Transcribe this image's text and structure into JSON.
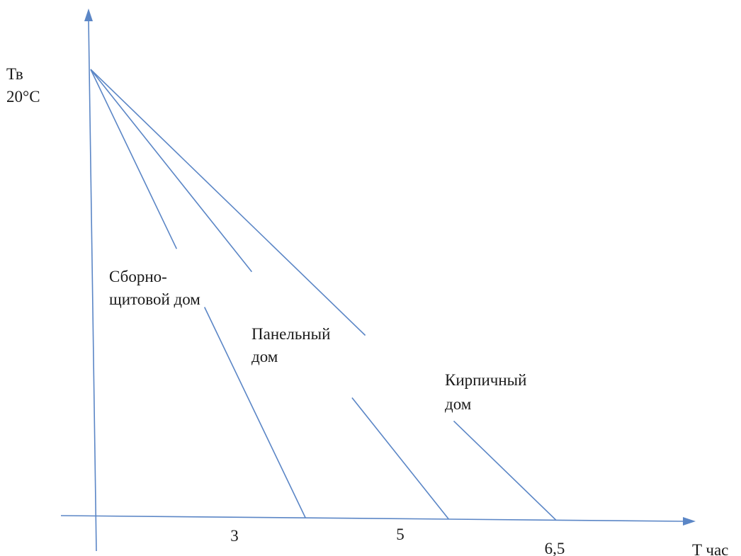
{
  "chart_data": {
    "type": "line",
    "xlabel": "T час",
    "ylabel": "Тв",
    "y_value_label": "20°C",
    "y_start": 20,
    "y_end": 0,
    "x_ticks": [
      "3",
      "5",
      "6,5"
    ],
    "series": [
      {
        "name_lines": [
          "Сборно-",
          "щитовой дом"
        ],
        "x": [
          0,
          3
        ],
        "y": [
          20,
          0
        ]
      },
      {
        "name_lines": [
          "Панельный",
          "дом"
        ],
        "x": [
          0,
          5
        ],
        "y": [
          20,
          0
        ]
      },
      {
        "name_lines": [
          "Кирпичный",
          "дом"
        ],
        "x": [
          0,
          6.5
        ],
        "y": [
          20,
          0
        ]
      }
    ],
    "colors": {
      "line": "#5b86c6",
      "text": "#1a1a1a"
    }
  }
}
